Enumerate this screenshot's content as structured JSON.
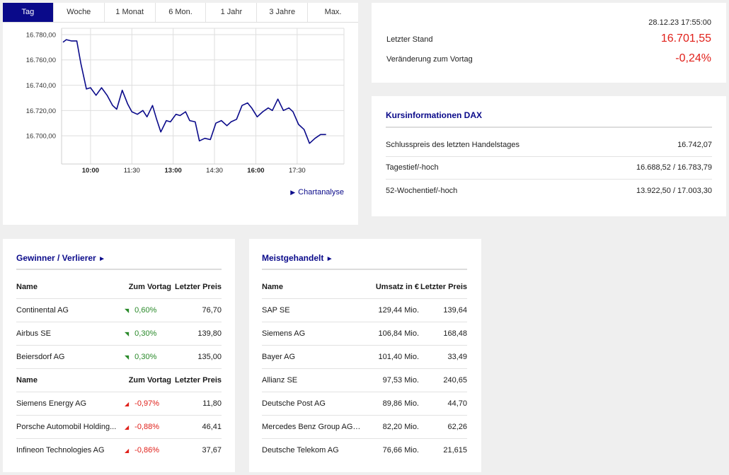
{
  "tabs": [
    "Tag",
    "Woche",
    "1 Monat",
    "6 Mon.",
    "1 Jahr",
    "3 Jahre",
    "Max."
  ],
  "chart_link": "Chartanalyse",
  "chart_data": {
    "type": "line",
    "x_ticks": [
      "10:00",
      "11:30",
      "13:00",
      "14:30",
      "16:00",
      "17:30"
    ],
    "y_ticks": [
      "16.780,00",
      "16.760,00",
      "16.740,00",
      "16.720,00",
      "16.700,00"
    ],
    "ylim": [
      16690,
      16785
    ],
    "xlim": [
      0,
      10.2
    ],
    "color": "#0a0a8a",
    "series": [
      {
        "values": [
          [
            0.0,
            16774
          ],
          [
            0.12,
            16776
          ],
          [
            0.3,
            16775
          ],
          [
            0.5,
            16775
          ],
          [
            0.65,
            16757
          ],
          [
            0.85,
            16737
          ],
          [
            1.0,
            16738
          ],
          [
            1.2,
            16732
          ],
          [
            1.4,
            16738
          ],
          [
            1.6,
            16732
          ],
          [
            1.8,
            16724
          ],
          [
            1.95,
            16721
          ],
          [
            2.15,
            16736
          ],
          [
            2.35,
            16725
          ],
          [
            2.5,
            16719
          ],
          [
            2.7,
            16717
          ],
          [
            2.9,
            16720
          ],
          [
            3.05,
            16715
          ],
          [
            3.25,
            16724
          ],
          [
            3.4,
            16713
          ],
          [
            3.55,
            16703
          ],
          [
            3.75,
            16712
          ],
          [
            3.9,
            16711
          ],
          [
            4.1,
            16717
          ],
          [
            4.25,
            16716
          ],
          [
            4.45,
            16719
          ],
          [
            4.6,
            16712
          ],
          [
            4.8,
            16711
          ],
          [
            4.95,
            16696
          ],
          [
            5.15,
            16698
          ],
          [
            5.35,
            16697
          ],
          [
            5.55,
            16710
          ],
          [
            5.75,
            16712
          ],
          [
            5.95,
            16708
          ],
          [
            6.1,
            16711
          ],
          [
            6.3,
            16713
          ],
          [
            6.5,
            16724
          ],
          [
            6.7,
            16726
          ],
          [
            6.85,
            16722
          ],
          [
            7.05,
            16715
          ],
          [
            7.25,
            16719
          ],
          [
            7.45,
            16722
          ],
          [
            7.6,
            16720
          ],
          [
            7.8,
            16729
          ],
          [
            8.0,
            16720
          ],
          [
            8.2,
            16722
          ],
          [
            8.35,
            16719
          ],
          [
            8.55,
            16709
          ],
          [
            8.75,
            16705
          ],
          [
            8.95,
            16694
          ],
          [
            9.15,
            16698
          ],
          [
            9.35,
            16701
          ],
          [
            9.55,
            16701
          ]
        ]
      }
    ]
  },
  "stand": {
    "datetime": "28.12.23 17:55:00",
    "letzter_label": "Letzter Stand",
    "letzter_value": "16.701,55",
    "veraenderung_label": "Veränderung zum Vortag",
    "veraenderung_value": "-0,24%"
  },
  "kurs": {
    "title": "Kursinformationen DAX",
    "rows": [
      {
        "label": "Schlusspreis des letzten Handelstages",
        "value": "16.742,07"
      },
      {
        "label": "Tagestief/-hoch",
        "value": "16.688,52 / 16.783,79"
      },
      {
        "label": "52-Wochentief/-hoch",
        "value": "13.922,50 / 17.003,30"
      }
    ]
  },
  "gewinner": {
    "title": "Gewinner / Verlierer",
    "title_arrow": "►",
    "headers": [
      "Name",
      "Zum Vortag",
      "Letzter Preis"
    ],
    "winners": [
      {
        "name": "Continental AG",
        "change": "0,60%",
        "price": "76,70"
      },
      {
        "name": "Airbus SE",
        "change": "0,30%",
        "price": "139,80"
      },
      {
        "name": "Beiersdorf AG",
        "change": "0,30%",
        "price": "135,00"
      }
    ],
    "losers": [
      {
        "name": "Siemens Energy AG",
        "change": "-0,97%",
        "price": "11,80"
      },
      {
        "name": "Porsche Automobil Holding...",
        "change": "-0,88%",
        "price": "46,41"
      },
      {
        "name": "Infineon Technologies AG",
        "change": "-0,86%",
        "price": "37,67"
      }
    ],
    "up_arrow": "◥",
    "down_arrow": "◢"
  },
  "meist": {
    "title": "Meistgehandelt",
    "title_arrow": "►",
    "headers": [
      "Name",
      "Umsatz in €",
      "Letzter Preis"
    ],
    "rows": [
      {
        "name": "SAP SE",
        "umsatz": "129,44 Mio.",
        "price": "139,64"
      },
      {
        "name": "Siemens AG",
        "umsatz": "106,84 Mio.",
        "price": "168,48"
      },
      {
        "name": "Bayer AG",
        "umsatz": "101,40 Mio.",
        "price": "33,49"
      },
      {
        "name": "Allianz SE",
        "umsatz": "97,53 Mio.",
        "price": "240,65"
      },
      {
        "name": "Deutsche Post AG",
        "umsatz": "89,86 Mio.",
        "price": "44,70"
      },
      {
        "name": "Mercedes Benz Group AG ...",
        "umsatz": "82,20 Mio.",
        "price": "62,26"
      },
      {
        "name": "Deutsche Telekom AG",
        "umsatz": "76,66 Mio.",
        "price": "21,615"
      }
    ]
  }
}
